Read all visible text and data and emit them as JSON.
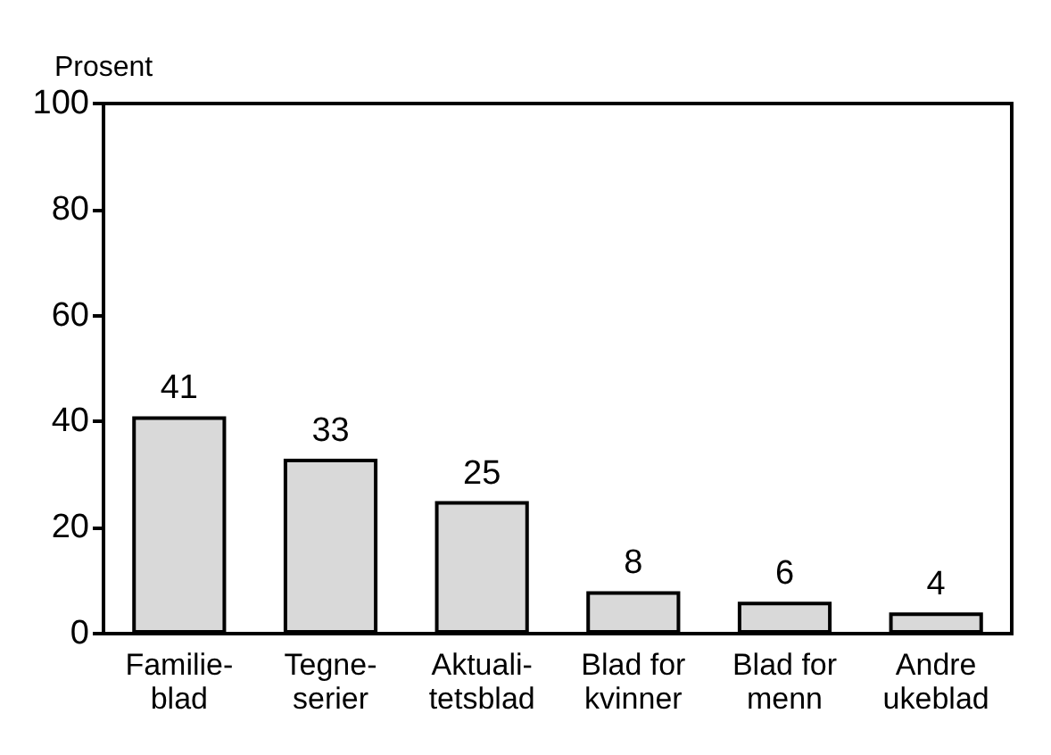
{
  "chart_data": {
    "type": "bar",
    "ylabel": "Prosent",
    "categories": [
      "Familie-\nblad",
      "Tegne-\nserier",
      "Aktuali-\ntetsblad",
      "Blad for\nkvinner",
      "Blad for\nmenn",
      "Andre\nukeblad"
    ],
    "values": [
      41,
      33,
      25,
      8,
      6,
      4
    ],
    "color": "#d9d9d9",
    "ylim": [
      0,
      100
    ],
    "yticks": [
      0,
      20,
      40,
      60,
      80,
      100
    ],
    "grid": false,
    "data_labels": true
  }
}
